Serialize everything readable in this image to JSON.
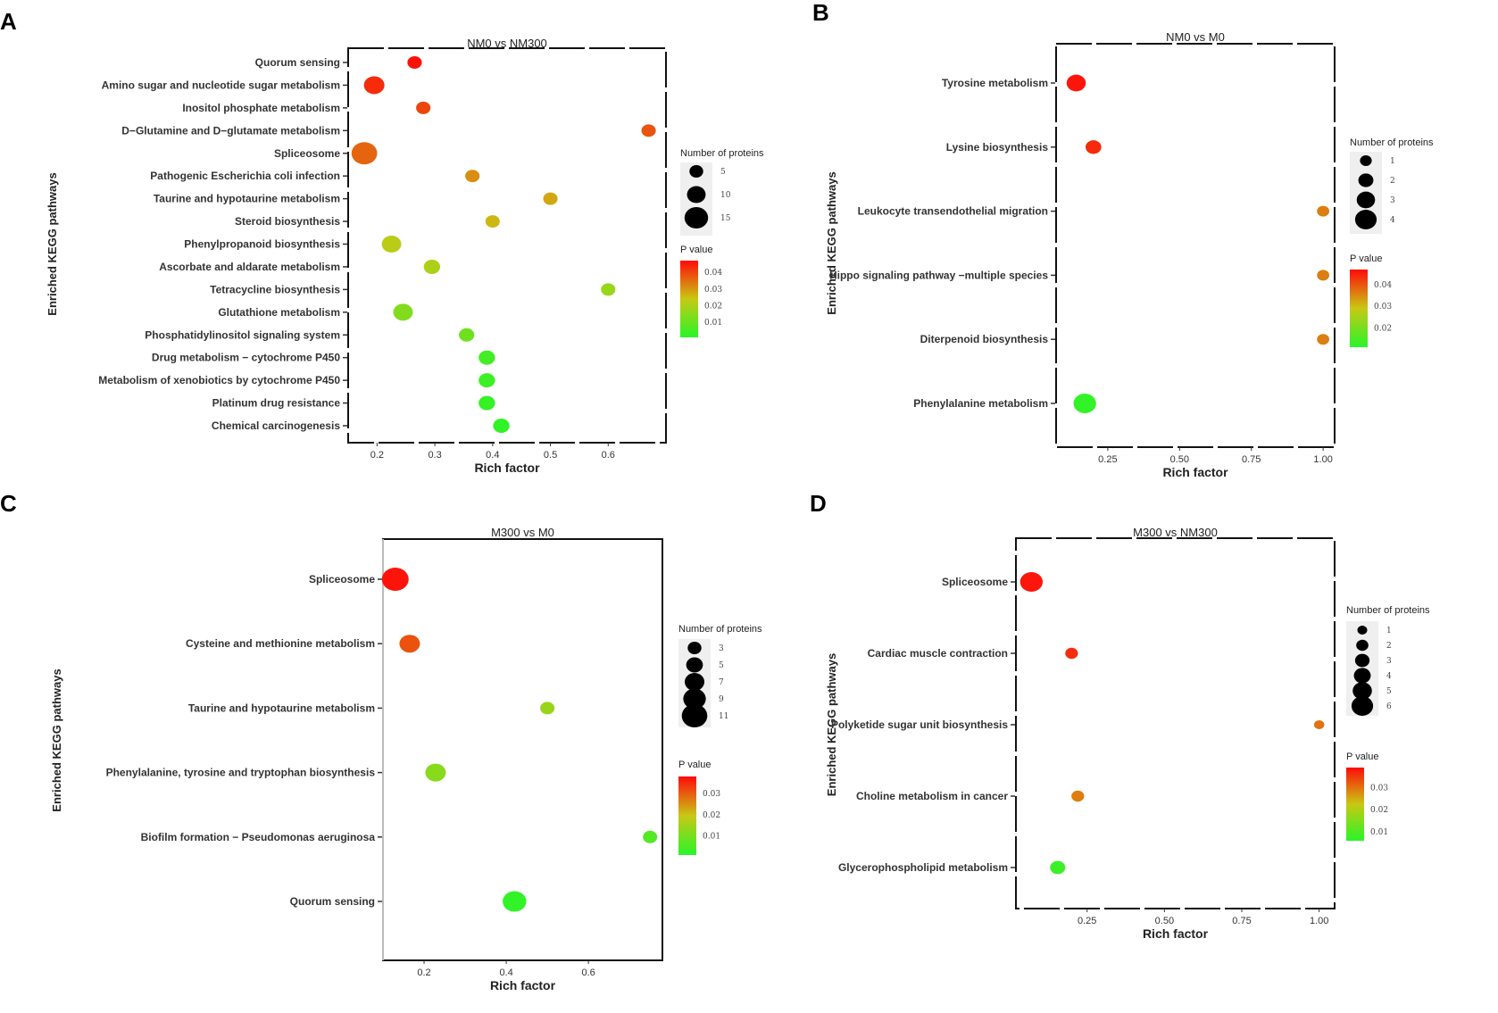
{
  "chart_data": [
    {
      "panel_label": "A",
      "type": "scatter",
      "title": "NM0 vs NM300",
      "xlabel": "Rich factor",
      "ylabel": "Enriched KEGG pathways",
      "xlim": [
        0.15,
        0.7
      ],
      "xticks": [
        "0.2",
        "0.3",
        "0.4",
        "0.5",
        "0.6"
      ],
      "xtick_values": [
        0.2,
        0.3,
        0.4,
        0.5,
        0.6
      ],
      "frame_dashed": true,
      "size_legend_title": "Number of proteins",
      "size_legend_labels": [
        "5",
        "10",
        "15"
      ],
      "size_legend_values": [
        5,
        10,
        15
      ],
      "color_legend_title": "P value",
      "color_legend_labels": [
        "0.04",
        "0.03",
        "0.02",
        "0.01"
      ],
      "color_legend_values": [
        0.04,
        0.03,
        0.02,
        0.01
      ],
      "p_range": [
        0.001,
        0.047
      ],
      "points": [
        {
          "pathway": "Quorum sensing",
          "rich_factor": 0.265,
          "count": 5,
          "p_value": 0.046
        },
        {
          "pathway": "Amino sugar and nucleotide sugar metabolism",
          "rich_factor": 0.195,
          "count": 11,
          "p_value": 0.043
        },
        {
          "pathway": "Inositol phosphate metabolism",
          "rich_factor": 0.28,
          "count": 5,
          "p_value": 0.04
        },
        {
          "pathway": "D−Glutamine and D−glutamate metabolism",
          "rich_factor": 0.67,
          "count": 3,
          "p_value": 0.038
        },
        {
          "pathway": "Spliceosome",
          "rich_factor": 0.178,
          "count": 16,
          "p_value": 0.036
        },
        {
          "pathway": "Pathogenic Escherichia coli infection",
          "rich_factor": 0.365,
          "count": 5,
          "p_value": 0.031
        },
        {
          "pathway": "Taurine and hypotaurine metabolism",
          "rich_factor": 0.5,
          "count": 4,
          "p_value": 0.028
        },
        {
          "pathway": "Steroid biosynthesis",
          "rich_factor": 0.4,
          "count": 4,
          "p_value": 0.026
        },
        {
          "pathway": "Phenylpropanoid biosynthesis",
          "rich_factor": 0.225,
          "count": 10,
          "p_value": 0.022
        },
        {
          "pathway": "Ascorbate and aldarate metabolism",
          "rich_factor": 0.295,
          "count": 7,
          "p_value": 0.02
        },
        {
          "pathway": "Tetracycline biosynthesis",
          "rich_factor": 0.6,
          "count": 3,
          "p_value": 0.017
        },
        {
          "pathway": "Glutathione metabolism",
          "rich_factor": 0.245,
          "count": 10,
          "p_value": 0.014
        },
        {
          "pathway": "Phosphatidylinositol signaling system",
          "rich_factor": 0.355,
          "count": 6,
          "p_value": 0.011
        },
        {
          "pathway": "Drug metabolism − cytochrome P450",
          "rich_factor": 0.39,
          "count": 7,
          "p_value": 0.005
        },
        {
          "pathway": "Metabolism of xenobiotics by cytochrome P450",
          "rich_factor": 0.39,
          "count": 7,
          "p_value": 0.004
        },
        {
          "pathway": "Platinum drug resistance",
          "rich_factor": 0.39,
          "count": 7,
          "p_value": 0.003
        },
        {
          "pathway": "Chemical carcinogenesis",
          "rich_factor": 0.415,
          "count": 7,
          "p_value": 0.002
        }
      ]
    },
    {
      "panel_label": "B",
      "type": "scatter",
      "title": "NM0 vs M0",
      "xlabel": "Rich factor",
      "ylabel": "Enriched KEGG pathways",
      "xlim": [
        0.07,
        1.04
      ],
      "xticks": [
        "0.25",
        "0.50",
        "0.75",
        "1.00"
      ],
      "xtick_values": [
        0.25,
        0.5,
        0.75,
        1.0
      ],
      "frame_dashed": true,
      "size_legend_title": "Number of proteins",
      "size_legend_labels": [
        "1",
        "2",
        "3",
        "4"
      ],
      "size_legend_values": [
        1,
        2,
        3,
        4
      ],
      "color_legend_title": "P value",
      "color_legend_labels": [
        "0.04",
        "0.03",
        "0.02"
      ],
      "color_legend_values": [
        0.04,
        0.03,
        0.02
      ],
      "p_range": [
        0.011,
        0.047
      ],
      "points": [
        {
          "pathway": "Tyrosine metabolism",
          "rich_factor": 0.14,
          "count": 3,
          "p_value": 0.046
        },
        {
          "pathway": "Lysine biosynthesis",
          "rich_factor": 0.2,
          "count": 2,
          "p_value": 0.044
        },
        {
          "pathway": "Leukocyte transendothelial migration",
          "rich_factor": 1.0,
          "count": 1,
          "p_value": 0.036
        },
        {
          "pathway": "Hippo signaling pathway −multiple species",
          "rich_factor": 1.0,
          "count": 1,
          "p_value": 0.036
        },
        {
          "pathway": "Diterpenoid biosynthesis",
          "rich_factor": 1.0,
          "count": 1,
          "p_value": 0.036
        },
        {
          "pathway": "Phenylalanine metabolism",
          "rich_factor": 0.17,
          "count": 4,
          "p_value": 0.012
        }
      ]
    },
    {
      "panel_label": "C",
      "type": "scatter",
      "title": "M300 vs M0",
      "xlabel": "Rich factor",
      "ylabel": "Enriched KEGG pathways",
      "xlim": [
        0.1,
        0.78
      ],
      "xticks": [
        "0.2",
        "0.4",
        "0.6"
      ],
      "xtick_values": [
        0.2,
        0.4,
        0.6
      ],
      "frame_dashed": false,
      "size_legend_title": "Number of proteins",
      "size_legend_labels": [
        "3",
        "5",
        "7",
        "9",
        "11"
      ],
      "size_legend_values": [
        3,
        5,
        7,
        9,
        11
      ],
      "color_legend_title": "P value",
      "color_legend_labels": [
        "0.03",
        "0.02",
        "0.01"
      ],
      "color_legend_values": [
        0.03,
        0.02,
        0.01
      ],
      "p_range": [
        0.001,
        0.038
      ],
      "points": [
        {
          "pathway": "Spliceosome",
          "rich_factor": 0.13,
          "count": 11,
          "p_value": 0.037
        },
        {
          "pathway": "Cysteine and methionine metabolism",
          "rich_factor": 0.165,
          "count": 7,
          "p_value": 0.031
        },
        {
          "pathway": "Taurine and hypotaurine metabolism",
          "rich_factor": 0.5,
          "count": 3,
          "p_value": 0.014
        },
        {
          "pathway": "Phenylalanine, tyrosine and tryptophan biosynthesis",
          "rich_factor": 0.228,
          "count": 7,
          "p_value": 0.012
        },
        {
          "pathway": "Biofilm formation − Pseudomonas aeruginosa",
          "rich_factor": 0.75,
          "count": 3,
          "p_value": 0.006
        },
        {
          "pathway": "Quorum sensing",
          "rich_factor": 0.42,
          "count": 9,
          "p_value": 0.002
        }
      ]
    },
    {
      "panel_label": "D",
      "type": "scatter",
      "title": "M300 vs NM300",
      "xlabel": "Rich factor",
      "ylabel": "Enriched KEGG pathways",
      "xlim": [
        0.02,
        1.05
      ],
      "xticks": [
        "0.25",
        "0.50",
        "0.75",
        "1.00"
      ],
      "xtick_values": [
        0.25,
        0.5,
        0.75,
        1.0
      ],
      "frame_dashed": true,
      "size_legend_title": "Number of proteins",
      "size_legend_labels": [
        "1",
        "2",
        "3",
        "4",
        "5",
        "6"
      ],
      "size_legend_values": [
        1,
        2,
        3,
        4,
        5,
        6
      ],
      "color_legend_title": "P value",
      "color_legend_labels": [
        "0.03",
        "0.02",
        "0.01"
      ],
      "color_legend_values": [
        0.03,
        0.02,
        0.01
      ],
      "p_range": [
        0.006,
        0.039
      ],
      "points": [
        {
          "pathway": "Spliceosome",
          "rich_factor": 0.07,
          "count": 6,
          "p_value": 0.038
        },
        {
          "pathway": "Cardiac muscle contraction",
          "rich_factor": 0.2,
          "count": 2,
          "p_value": 0.036
        },
        {
          "pathway": "Polyketide sugar unit biosynthesis",
          "rich_factor": 1.0,
          "count": 1,
          "p_value": 0.03
        },
        {
          "pathway": "Choline metabolism in cancer",
          "rich_factor": 0.22,
          "count": 2,
          "p_value": 0.029
        },
        {
          "pathway": "Glycerophospholipid metabolism",
          "rich_factor": 0.155,
          "count": 3,
          "p_value": 0.008
        }
      ]
    }
  ]
}
